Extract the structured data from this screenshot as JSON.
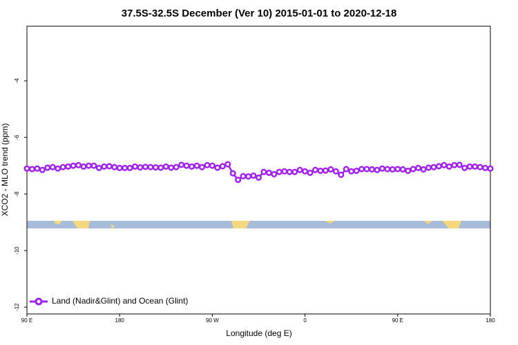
{
  "chart_data": {
    "type": "line",
    "title": "37.5S-32.5S December (Ver 10)   2015-01-01 to 2020-12-18",
    "x_label": "Longitude (deg E)",
    "y_label": "XCO2 - MLO trend (ppm)",
    "xlim": [
      90,
      540
    ],
    "ylim": [
      -12.24,
      -2.07
    ],
    "xticks": [
      {
        "value": 90,
        "label": "90 E"
      },
      180,
      {
        "value": 270,
        "label": "90 W"
      },
      {
        "value": 360,
        "label": "0"
      },
      {
        "value": 450,
        "label": "90 E"
      },
      {
        "value": 540,
        "label": "180"
      }
    ],
    "yticks": [
      -4,
      -6,
      -8,
      -10,
      -12
    ],
    "legend": "bottom-left",
    "grid": false,
    "series": [
      {
        "name": "Land (Nadir&Glint) and Ocean (Glint)",
        "color": "#a020f0",
        "x": [
          90,
          95,
          100,
          105,
          110,
          115,
          120,
          125,
          130,
          135,
          140,
          145,
          150,
          155,
          160,
          165,
          170,
          175,
          180,
          185,
          190,
          195,
          200,
          205,
          210,
          215,
          220,
          225,
          230,
          235,
          240,
          245,
          250,
          255,
          260,
          265,
          270,
          275,
          280,
          285,
          290,
          295,
          300,
          305,
          310,
          315,
          320,
          325,
          330,
          335,
          340,
          345,
          350,
          355,
          360,
          365,
          370,
          375,
          380,
          385,
          390,
          395,
          400,
          405,
          410,
          415,
          420,
          425,
          430,
          435,
          440,
          445,
          450,
          455,
          460,
          465,
          470,
          475,
          480,
          485,
          490,
          495,
          500,
          505,
          510,
          515,
          520,
          525,
          530,
          535,
          540
        ],
        "values": [
          -7.1,
          -7.12,
          -7.1,
          -7.15,
          -7.07,
          -7.05,
          -7.1,
          -7.05,
          -7.03,
          -7.0,
          -6.98,
          -7.03,
          -7.0,
          -7.0,
          -7.08,
          -7.03,
          -7.02,
          -7.05,
          -7.08,
          -7.08,
          -7.08,
          -7.03,
          -7.06,
          -7.04,
          -7.05,
          -7.06,
          -7.07,
          -7.03,
          -7.07,
          -7.05,
          -6.97,
          -7.0,
          -7.03,
          -7.0,
          -7.05,
          -6.98,
          -7.0,
          -7.07,
          -7.02,
          -6.95,
          -7.27,
          -7.5,
          -7.37,
          -7.38,
          -7.35,
          -7.42,
          -7.22,
          -7.25,
          -7.3,
          -7.22,
          -7.2,
          -7.22,
          -7.22,
          -7.15,
          -7.2,
          -7.25,
          -7.15,
          -7.18,
          -7.17,
          -7.13,
          -7.2,
          -7.32,
          -7.12,
          -7.2,
          -7.18,
          -7.12,
          -7.12,
          -7.13,
          -7.15,
          -7.1,
          -7.12,
          -7.13,
          -7.12,
          -7.13,
          -7.18,
          -7.12,
          -7.08,
          -7.13,
          -7.07,
          -7.05,
          -7.02,
          -6.98,
          -7.03,
          -6.98,
          -6.97,
          -7.08,
          -7.03,
          -7.03,
          -7.05,
          -7.08,
          -7.1
        ]
      }
    ]
  }
}
